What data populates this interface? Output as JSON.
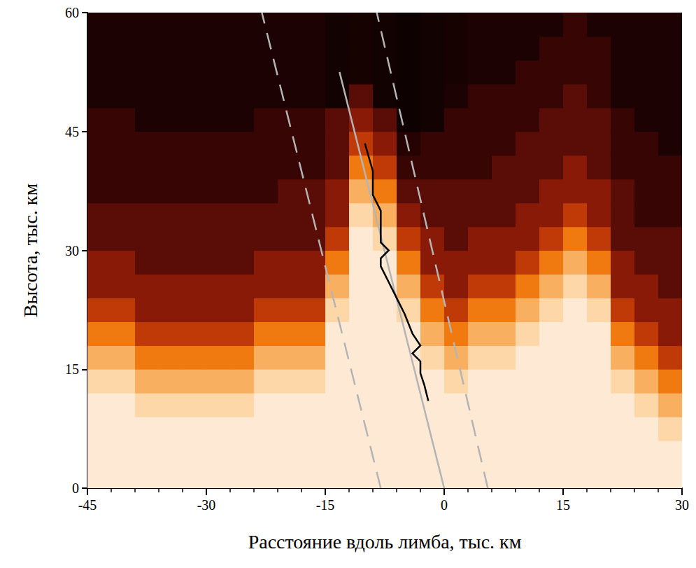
{
  "chart_data": {
    "type": "heatmap",
    "xlabel": "Расстояние вдоль лимба, тыс. км",
    "ylabel": "Высота, тыс. км",
    "xlim": [
      -45,
      30
    ],
    "ylim": [
      0,
      60
    ],
    "xticks": [
      -45,
      -30,
      -15,
      0,
      15,
      30
    ],
    "yticks": [
      0,
      15,
      30,
      45,
      60
    ],
    "grid": false,
    "tick_labels": true,
    "zlim": [
      0,
      1
    ],
    "x": [
      -43.5,
      -40.5,
      -37.5,
      -34.5,
      -31.5,
      -28.5,
      -25.5,
      -22.5,
      -19.5,
      -16.5,
      -13.5,
      -10.5,
      -7.5,
      -4.5,
      -1.5,
      1.5,
      4.5,
      7.5,
      10.5,
      13.5,
      16.5,
      19.5,
      22.5,
      25.5,
      28.5
    ],
    "y": [
      1.5,
      4.5,
      7.5,
      10.5,
      13.5,
      16.5,
      19.5,
      22.5,
      25.5,
      28.5,
      31.5,
      34.5,
      37.5,
      40.5,
      43.5,
      46.5,
      49.5,
      52.5,
      55.5,
      58.5
    ],
    "cells": [
      [
        0.95,
        0.95,
        0.95,
        0.95,
        0.85,
        0.7,
        0.55,
        0.42,
        0.3,
        0.3,
        0.2,
        0.2,
        0.12,
        0.12,
        0.12,
        0.12,
        0.06,
        0.06,
        0.06,
        0.06
      ],
      [
        0.95,
        0.95,
        0.95,
        0.95,
        0.85,
        0.7,
        0.55,
        0.42,
        0.3,
        0.3,
        0.2,
        0.2,
        0.12,
        0.12,
        0.12,
        0.12,
        0.06,
        0.06,
        0.06,
        0.06
      ],
      [
        0.95,
        0.95,
        0.95,
        0.85,
        0.7,
        0.55,
        0.42,
        0.3,
        0.3,
        0.2,
        0.2,
        0.2,
        0.12,
        0.12,
        0.12,
        0.06,
        0.06,
        0.06,
        0.06,
        0.06
      ],
      [
        0.95,
        0.95,
        0.95,
        0.85,
        0.7,
        0.55,
        0.42,
        0.3,
        0.3,
        0.2,
        0.2,
        0.2,
        0.12,
        0.12,
        0.12,
        0.06,
        0.06,
        0.06,
        0.06,
        0.06
      ],
      [
        0.95,
        0.95,
        0.95,
        0.85,
        0.7,
        0.55,
        0.42,
        0.3,
        0.3,
        0.2,
        0.2,
        0.2,
        0.12,
        0.12,
        0.12,
        0.06,
        0.06,
        0.06,
        0.06,
        0.06
      ],
      [
        0.95,
        0.95,
        0.95,
        0.85,
        0.7,
        0.55,
        0.42,
        0.3,
        0.3,
        0.2,
        0.2,
        0.2,
        0.12,
        0.12,
        0.12,
        0.06,
        0.06,
        0.06,
        0.06,
        0.06
      ],
      [
        0.95,
        0.95,
        0.95,
        0.85,
        0.7,
        0.55,
        0.42,
        0.3,
        0.3,
        0.2,
        0.2,
        0.2,
        0.12,
        0.12,
        0.12,
        0.06,
        0.06,
        0.06,
        0.06,
        0.06
      ],
      [
        0.95,
        0.95,
        0.95,
        0.95,
        0.85,
        0.7,
        0.55,
        0.42,
        0.3,
        0.3,
        0.2,
        0.2,
        0.12,
        0.12,
        0.12,
        0.12,
        0.06,
        0.06,
        0.06,
        0.06
      ],
      [
        0.95,
        0.95,
        0.95,
        0.95,
        0.85,
        0.7,
        0.55,
        0.42,
        0.3,
        0.3,
        0.2,
        0.2,
        0.2,
        0.12,
        0.12,
        0.12,
        0.06,
        0.06,
        0.06,
        0.06
      ],
      [
        0.95,
        0.95,
        0.95,
        0.95,
        0.85,
        0.7,
        0.55,
        0.42,
        0.3,
        0.3,
        0.2,
        0.2,
        0.2,
        0.12,
        0.12,
        0.12,
        0.06,
        0.06,
        0.06,
        0.06
      ],
      [
        0.95,
        0.95,
        0.95,
        0.95,
        0.95,
        0.95,
        0.95,
        0.85,
        0.7,
        0.55,
        0.42,
        0.3,
        0.3,
        0.2,
        0.2,
        0.2,
        0.04,
        0.04,
        0.04,
        0.04
      ],
      [
        0.95,
        0.95,
        0.95,
        0.95,
        0.95,
        0.95,
        0.95,
        0.95,
        0.95,
        0.95,
        0.95,
        0.85,
        0.7,
        0.55,
        0.42,
        0.3,
        0.2,
        0.05,
        0.05,
        0.05
      ],
      [
        0.95,
        0.95,
        0.95,
        0.95,
        0.95,
        0.95,
        0.95,
        0.95,
        0.95,
        0.95,
        0.85,
        0.7,
        0.55,
        0.42,
        0.3,
        0.2,
        0.04,
        0.04,
        0.04,
        0.04
      ],
      [
        0.95,
        0.95,
        0.95,
        0.95,
        0.95,
        0.95,
        0.95,
        0.85,
        0.7,
        0.55,
        0.42,
        0.3,
        0.2,
        0.12,
        0.08,
        0.03,
        0.03,
        0.03,
        0.03,
        0.03
      ],
      [
        0.95,
        0.95,
        0.95,
        0.95,
        0.95,
        0.85,
        0.7,
        0.55,
        0.42,
        0.3,
        0.3,
        0.2,
        0.2,
        0.12,
        0.12,
        0.04,
        0.04,
        0.04,
        0.04,
        0.04
      ],
      [
        0.95,
        0.95,
        0.95,
        0.95,
        0.85,
        0.7,
        0.55,
        0.42,
        0.3,
        0.3,
        0.2,
        0.2,
        0.2,
        0.12,
        0.12,
        0.12,
        0.06,
        0.05,
        0.05,
        0.05
      ],
      [
        0.95,
        0.95,
        0.95,
        0.95,
        0.95,
        0.85,
        0.7,
        0.55,
        0.42,
        0.3,
        0.3,
        0.2,
        0.2,
        0.12,
        0.12,
        0.12,
        0.12,
        0.06,
        0.06,
        0.06
      ],
      [
        0.95,
        0.95,
        0.95,
        0.95,
        0.95,
        0.85,
        0.7,
        0.55,
        0.42,
        0.3,
        0.3,
        0.2,
        0.2,
        0.2,
        0.12,
        0.12,
        0.12,
        0.06,
        0.06,
        0.06
      ],
      [
        0.95,
        0.95,
        0.95,
        0.95,
        0.95,
        0.95,
        0.85,
        0.7,
        0.55,
        0.42,
        0.3,
        0.3,
        0.2,
        0.2,
        0.2,
        0.12,
        0.12,
        0.12,
        0.06,
        0.06
      ],
      [
        0.95,
        0.95,
        0.95,
        0.95,
        0.95,
        0.95,
        0.95,
        0.85,
        0.7,
        0.55,
        0.42,
        0.3,
        0.3,
        0.2,
        0.2,
        0.2,
        0.12,
        0.12,
        0.12,
        0.06
      ],
      [
        0.95,
        0.95,
        0.95,
        0.95,
        0.95,
        0.95,
        0.95,
        0.95,
        0.85,
        0.7,
        0.55,
        0.42,
        0.3,
        0.3,
        0.2,
        0.2,
        0.2,
        0.12,
        0.12,
        0.12
      ],
      [
        0.95,
        0.95,
        0.95,
        0.95,
        0.95,
        0.95,
        0.95,
        0.85,
        0.7,
        0.55,
        0.42,
        0.3,
        0.3,
        0.2,
        0.2,
        0.2,
        0.12,
        0.12,
        0.12,
        0.06
      ],
      [
        0.95,
        0.95,
        0.95,
        0.95,
        0.85,
        0.7,
        0.55,
        0.42,
        0.3,
        0.3,
        0.2,
        0.2,
        0.2,
        0.12,
        0.12,
        0.12,
        0.06,
        0.06,
        0.06,
        0.06
      ],
      [
        0.95,
        0.95,
        0.95,
        0.85,
        0.7,
        0.55,
        0.42,
        0.3,
        0.3,
        0.2,
        0.2,
        0.12,
        0.12,
        0.12,
        0.12,
        0.06,
        0.06,
        0.06,
        0.06,
        0.06
      ],
      [
        0.95,
        0.95,
        0.85,
        0.7,
        0.55,
        0.42,
        0.3,
        0.3,
        0.2,
        0.2,
        0.2,
        0.12,
        0.12,
        0.12,
        0.06,
        0.06,
        0.06,
        0.06,
        0.06,
        0.06
      ]
    ],
    "series": [
      {
        "type": "line",
        "color": "#b4b4b4",
        "line_style": "dashed",
        "x": [
          -8,
          -23
        ],
        "values": [
          0,
          60
        ]
      },
      {
        "type": "line",
        "color": "#b4b4b4",
        "line_style": "dashed",
        "x": [
          5.5,
          -8.5
        ],
        "values": [
          0,
          60
        ]
      },
      {
        "type": "line",
        "color": "#b4b4b4",
        "line_style": "solid",
        "marker": "arrow",
        "x": [
          0,
          -13.2
        ],
        "values": [
          0,
          52.5
        ]
      },
      {
        "type": "line",
        "color": "#000000",
        "line_style": "solid",
        "x": [
          -2,
          -2.5,
          -3,
          -3,
          -4,
          -3,
          -4,
          -5,
          -6,
          -7,
          -8,
          -8,
          -7,
          -8,
          -8,
          -9,
          -9,
          -10
        ],
        "values": [
          11,
          13,
          14.5,
          16,
          17,
          18,
          19.5,
          22,
          24,
          26,
          28,
          29,
          30,
          31,
          35,
          37,
          40,
          43.5
        ]
      }
    ]
  }
}
